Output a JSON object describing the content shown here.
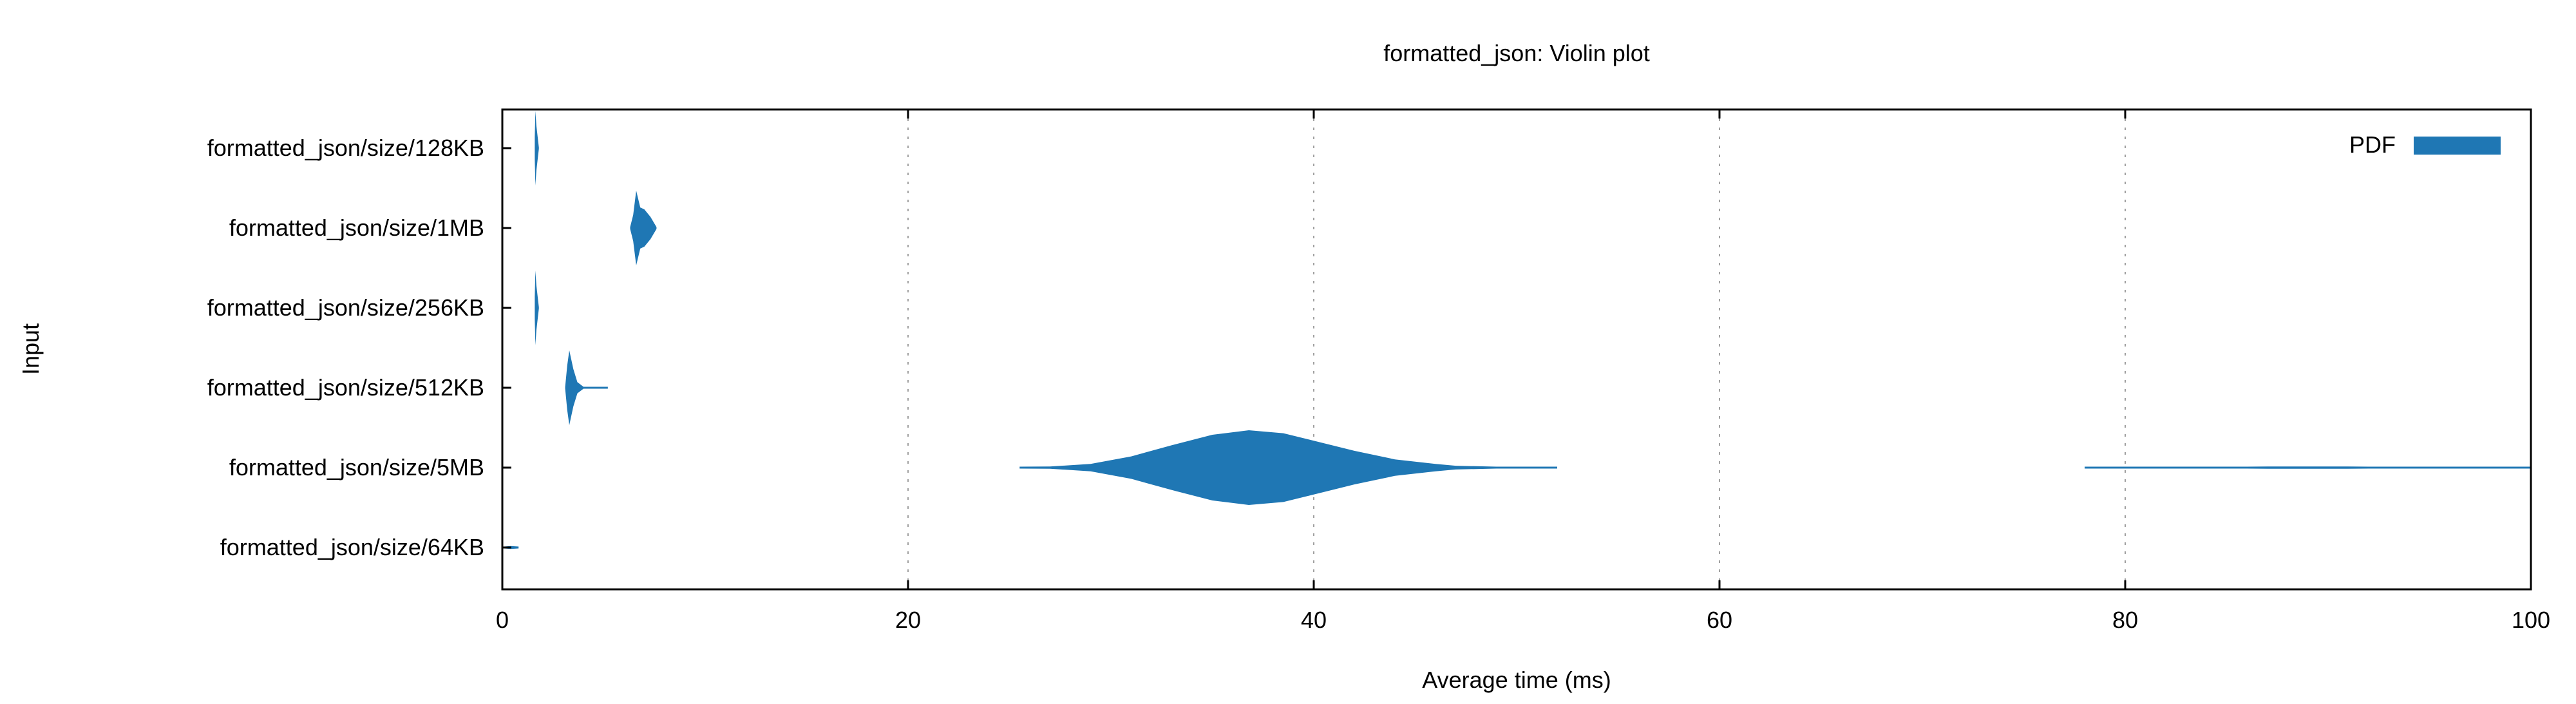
{
  "chart_data": {
    "type": "violin",
    "title": "formatted_json: Violin plot",
    "xlabel": "Average time (ms)",
    "ylabel": "Input",
    "xlim": [
      0,
      100
    ],
    "xticks": [
      0,
      20,
      40,
      60,
      80,
      100
    ],
    "grid": "vertical dashed",
    "legend": {
      "label": "PDF",
      "position": "top-right"
    },
    "color": "#1f77b4",
    "categories": [
      "formatted_json/size/128KB",
      "formatted_json/size/1MB",
      "formatted_json/size/256KB",
      "formatted_json/size/512KB",
      "formatted_json/size/5MB",
      "formatted_json/size/64KB"
    ],
    "series": [
      {
        "category": "formatted_json/size/128KB",
        "min": 1.6,
        "max": 1.8,
        "peak": 1.65,
        "profile": [
          [
            1.6,
            0.3
          ],
          [
            1.63,
            1.0
          ],
          [
            1.68,
            0.6
          ],
          [
            1.8,
            0.0
          ]
        ]
      },
      {
        "category": "formatted_json/size/1MB",
        "min": 6.3,
        "max": 7.6,
        "peak": 6.6,
        "profile": [
          [
            6.3,
            0.0
          ],
          [
            6.45,
            0.35
          ],
          [
            6.6,
            1.0
          ],
          [
            6.8,
            0.55
          ],
          [
            7.0,
            0.5
          ],
          [
            7.3,
            0.3
          ],
          [
            7.6,
            0.0
          ]
        ]
      },
      {
        "category": "formatted_json/size/256KB",
        "min": 1.6,
        "max": 1.8,
        "peak": 1.65,
        "profile": [
          [
            1.6,
            0.3
          ],
          [
            1.63,
            1.0
          ],
          [
            1.68,
            0.6
          ],
          [
            1.8,
            0.0
          ]
        ]
      },
      {
        "category": "formatted_json/size/512KB",
        "min": 3.1,
        "max": 5.2,
        "peak": 3.3,
        "profile": [
          [
            3.1,
            0.0
          ],
          [
            3.2,
            0.6
          ],
          [
            3.3,
            1.0
          ],
          [
            3.5,
            0.5
          ],
          [
            3.7,
            0.15
          ],
          [
            4.0,
            0.02
          ],
          [
            5.2,
            0.0
          ]
        ]
      },
      {
        "category": "formatted_json/size/5MB",
        "min": 25.5,
        "max": 52.0,
        "peak": 36.8,
        "profile": [
          [
            25.5,
            0.01
          ],
          [
            27.0,
            0.03
          ],
          [
            29.0,
            0.1
          ],
          [
            31.0,
            0.3
          ],
          [
            33.0,
            0.6
          ],
          [
            35.0,
            0.88
          ],
          [
            36.8,
            1.0
          ],
          [
            38.5,
            0.92
          ],
          [
            40.0,
            0.72
          ],
          [
            42.0,
            0.45
          ],
          [
            44.0,
            0.22
          ],
          [
            46.0,
            0.1
          ],
          [
            47.0,
            0.05
          ],
          [
            49.0,
            0.02
          ],
          [
            52.0,
            0.005
          ]
        ]
      },
      {
        "category": "formatted_json/size/5MB",
        "min": 78.0,
        "max": 100.0,
        "peak": 89.0,
        "profile": [
          [
            78.0,
            0.005
          ],
          [
            86.0,
            0.01
          ],
          [
            87.0,
            0.03
          ],
          [
            89.0,
            0.03
          ],
          [
            91.0,
            0.03
          ],
          [
            92.0,
            0.01
          ],
          [
            100.0,
            0.005
          ]
        ]
      },
      {
        "category": "formatted_json/size/64KB",
        "min": 0.1,
        "max": 0.8,
        "peak": 0.4,
        "profile": [
          [
            0.1,
            0.02
          ],
          [
            0.4,
            0.04
          ],
          [
            0.8,
            0.02
          ]
        ]
      }
    ]
  }
}
